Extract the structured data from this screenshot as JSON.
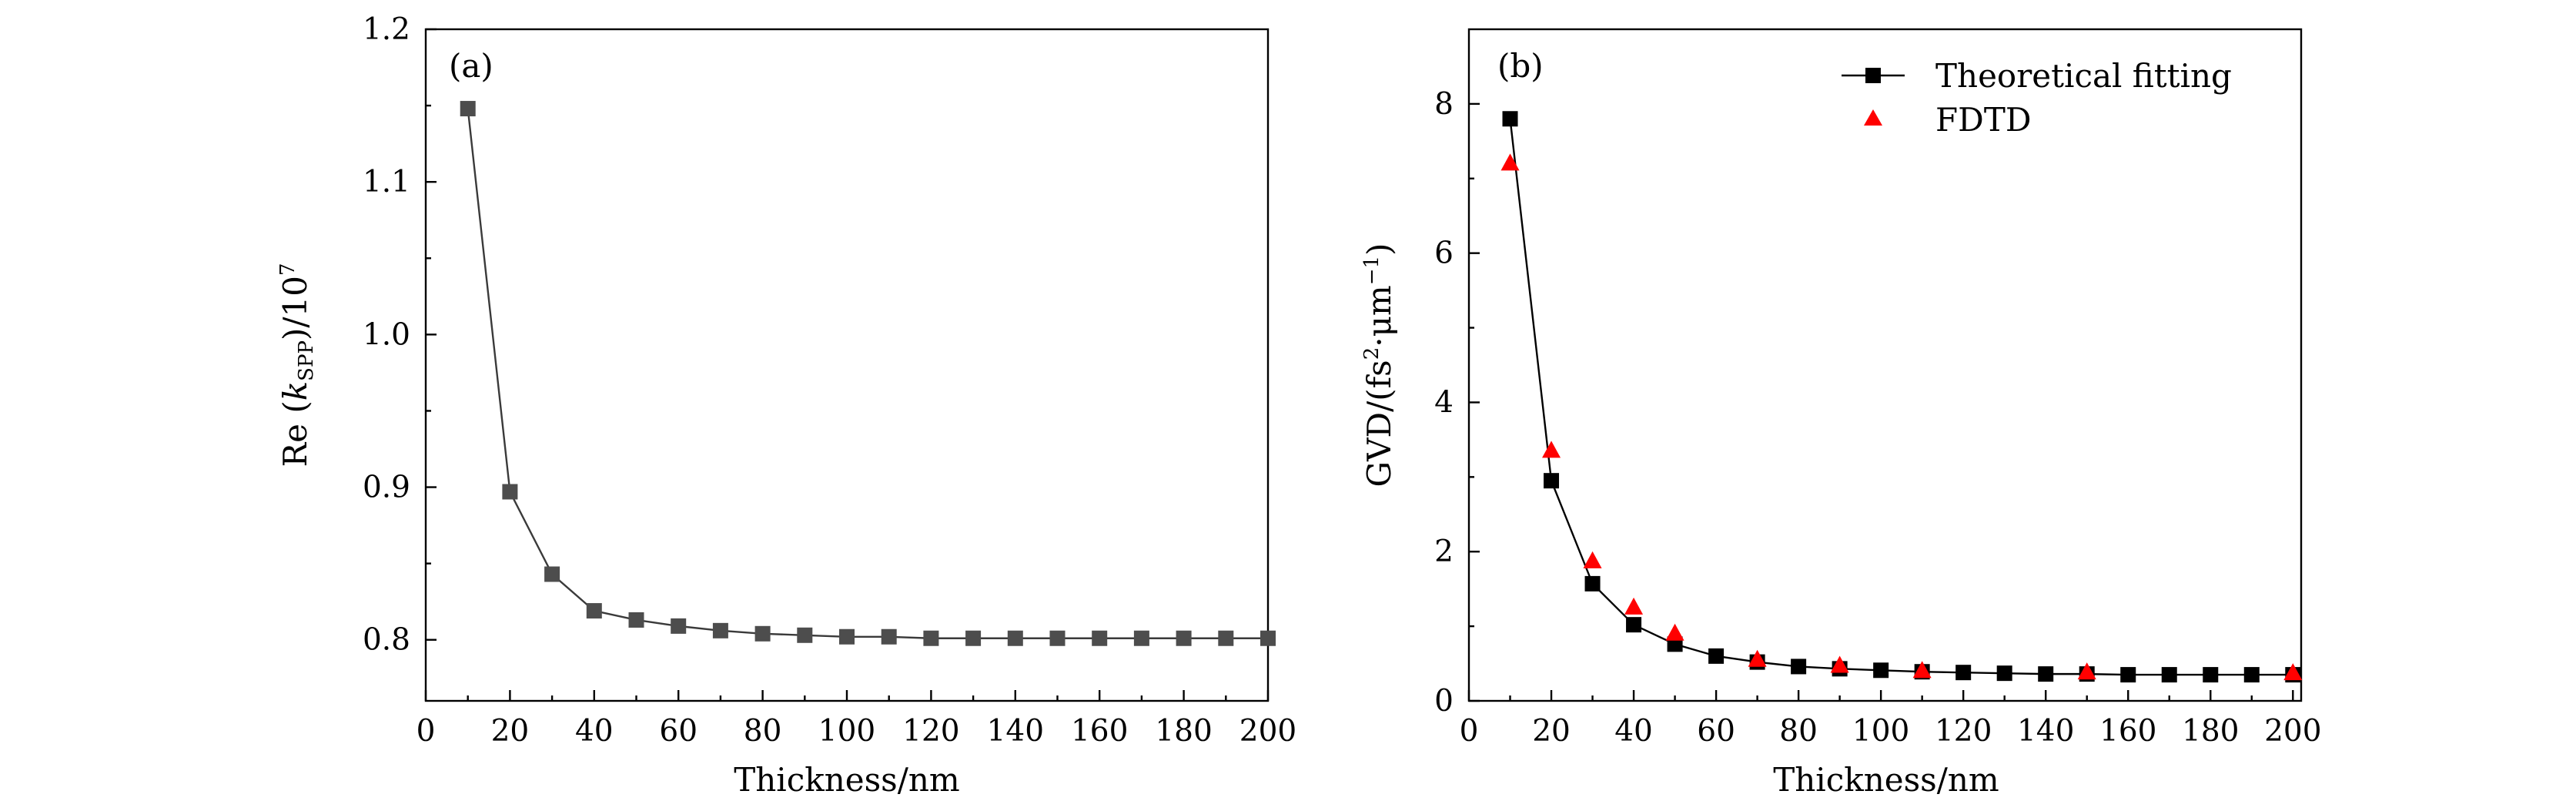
{
  "chart_data": [
    {
      "type": "line",
      "panel_label": "(a)",
      "xlabel": "Thickness/nm",
      "ylabel": {
        "prefix": "Re (",
        "k": "k",
        "sub": "SPP",
        "suffix": ")/10",
        "sup": "7"
      },
      "xlim": [
        0,
        200
      ],
      "ylim": [
        0.76,
        1.2
      ],
      "xticks": [
        0,
        20,
        40,
        60,
        80,
        100,
        120,
        140,
        160,
        180,
        200
      ],
      "yticks": [
        0.8,
        0.9,
        1.0,
        1.1,
        1.2
      ],
      "ytick_labels": [
        "0.8",
        "0.9",
        "1.0",
        "1.1",
        "1.2"
      ],
      "marker_color": "#4d4d4d",
      "line_color": "#3a3a3a",
      "series": [
        {
          "name": "Re(kSPP)",
          "x": [
            10,
            20,
            30,
            40,
            50,
            60,
            70,
            80,
            90,
            100,
            110,
            120,
            130,
            140,
            150,
            160,
            170,
            180,
            190,
            200
          ],
          "y": [
            1.148,
            0.897,
            0.843,
            0.819,
            0.813,
            0.809,
            0.806,
            0.804,
            0.803,
            0.802,
            0.802,
            0.801,
            0.801,
            0.801,
            0.801,
            0.801,
            0.801,
            0.801,
            0.801,
            0.801
          ]
        }
      ]
    },
    {
      "type": "line",
      "panel_label": "(b)",
      "xlabel": "Thickness/nm",
      "ylabel": {
        "prefix": "GVD/(fs",
        "sup1": "2",
        "mid": "·μm",
        "sup2": "−1",
        "suffix": ")"
      },
      "xlim": [
        0,
        202
      ],
      "ylim": [
        0,
        9
      ],
      "xticks": [
        0,
        20,
        40,
        60,
        80,
        100,
        120,
        140,
        160,
        180,
        200
      ],
      "yticks": [
        0,
        2,
        4,
        6,
        8
      ],
      "ytick_labels": [
        "0",
        "2",
        "4",
        "6",
        "8"
      ],
      "legend_position": "top-right",
      "series": [
        {
          "name": "Theoretical fitting",
          "marker": "square",
          "color": "#000000",
          "x": [
            10,
            20,
            30,
            40,
            50,
            60,
            70,
            80,
            90,
            100,
            110,
            120,
            130,
            140,
            150,
            160,
            170,
            180,
            190,
            200
          ],
          "y": [
            7.8,
            2.95,
            1.57,
            1.02,
            0.76,
            0.6,
            0.52,
            0.46,
            0.43,
            0.41,
            0.39,
            0.38,
            0.37,
            0.36,
            0.36,
            0.35,
            0.35,
            0.35,
            0.35,
            0.35
          ]
        },
        {
          "name": "FDTD",
          "marker": "triangle",
          "color": "#ff0000",
          "x": [
            10,
            20,
            30,
            40,
            50,
            70,
            90,
            110,
            150,
            200
          ],
          "y": [
            7.2,
            3.35,
            1.87,
            1.25,
            0.9,
            0.55,
            0.47,
            0.4,
            0.38,
            0.37
          ]
        }
      ]
    }
  ]
}
